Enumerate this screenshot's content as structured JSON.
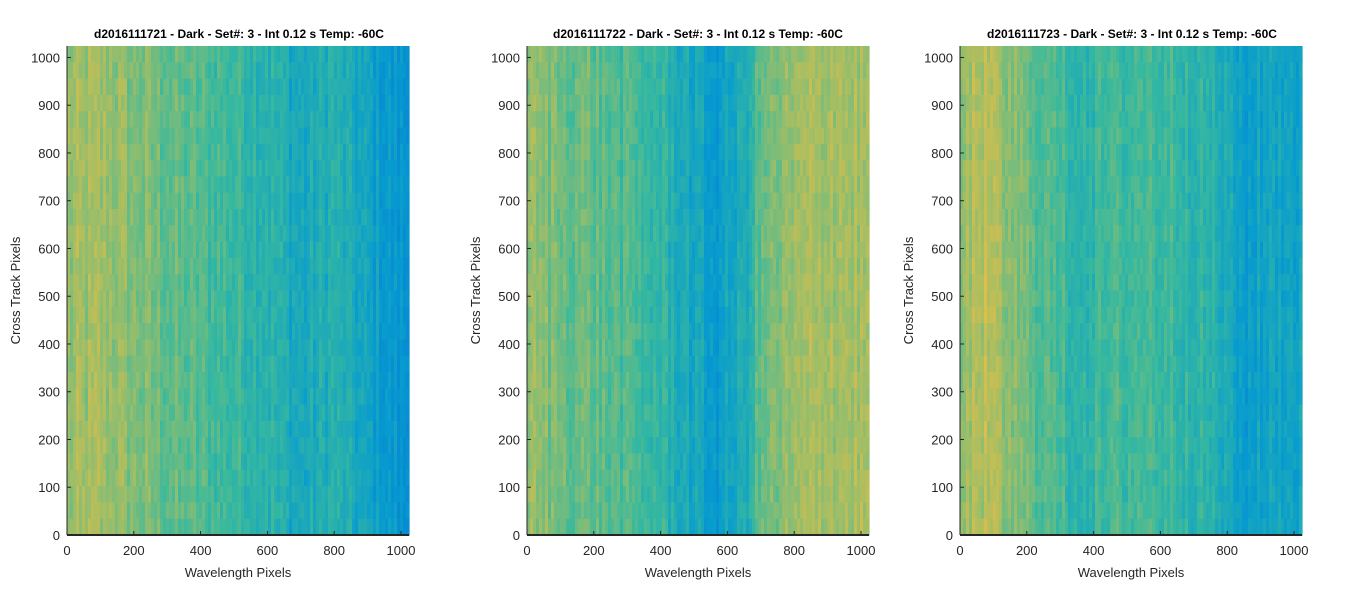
{
  "chart_data": [
    {
      "type": "heatmap",
      "title": "d2016111721 - Dark - Set#: 3 - Int 0.12 s Temp: -60C",
      "xlabel": "Wavelength Pixels",
      "ylabel": "Cross Track Pixels",
      "xlim": [
        0,
        1024
      ],
      "ylim": [
        0,
        1024
      ],
      "xticks": [
        0,
        200,
        400,
        600,
        800,
        1000
      ],
      "yticks": [
        0,
        100,
        200,
        300,
        400,
        500,
        600,
        700,
        800,
        900,
        1000
      ],
      "colormap": "parula",
      "column_profile": [
        {
          "x": 0,
          "level": 0.72
        },
        {
          "x": 100,
          "level": 0.74
        },
        {
          "x": 200,
          "level": 0.7
        },
        {
          "x": 300,
          "level": 0.66
        },
        {
          "x": 400,
          "level": 0.63
        },
        {
          "x": 500,
          "level": 0.6
        },
        {
          "x": 600,
          "level": 0.57
        },
        {
          "x": 700,
          "level": 0.5
        },
        {
          "x": 800,
          "level": 0.55
        },
        {
          "x": 900,
          "level": 0.48
        },
        {
          "x": 1024,
          "level": 0.4
        }
      ]
    },
    {
      "type": "heatmap",
      "title": "d2016111722 - Dark - Set#: 3 - Int 0.12 s Temp: -60C",
      "xlabel": "Wavelength Pixels",
      "ylabel": "Cross Track Pixels",
      "xlim": [
        0,
        1024
      ],
      "ylim": [
        0,
        1024
      ],
      "xticks": [
        0,
        200,
        400,
        600,
        800,
        1000
      ],
      "yticks": [
        0,
        100,
        200,
        300,
        400,
        500,
        600,
        700,
        800,
        900,
        1000
      ],
      "colormap": "parula",
      "column_profile": [
        {
          "x": 0,
          "level": 0.72
        },
        {
          "x": 100,
          "level": 0.68
        },
        {
          "x": 200,
          "level": 0.66
        },
        {
          "x": 300,
          "level": 0.62
        },
        {
          "x": 400,
          "level": 0.58
        },
        {
          "x": 500,
          "level": 0.5
        },
        {
          "x": 560,
          "level": 0.45
        },
        {
          "x": 650,
          "level": 0.52
        },
        {
          "x": 700,
          "level": 0.66
        },
        {
          "x": 800,
          "level": 0.72
        },
        {
          "x": 900,
          "level": 0.76
        },
        {
          "x": 1024,
          "level": 0.74
        }
      ]
    },
    {
      "type": "heatmap",
      "title": "d2016111723 - Dark - Set#: 3 - Int 0.12 s Temp: -60C",
      "xlabel": "Wavelength Pixels",
      "ylabel": "Cross Track Pixels",
      "xlim": [
        0,
        1024
      ],
      "ylim": [
        0,
        1024
      ],
      "xticks": [
        0,
        200,
        400,
        600,
        800,
        1000
      ],
      "yticks": [
        0,
        100,
        200,
        300,
        400,
        500,
        600,
        700,
        800,
        900,
        1000
      ],
      "colormap": "parula",
      "column_profile": [
        {
          "x": 0,
          "level": 0.7
        },
        {
          "x": 60,
          "level": 0.78
        },
        {
          "x": 150,
          "level": 0.7
        },
        {
          "x": 250,
          "level": 0.64
        },
        {
          "x": 350,
          "level": 0.58
        },
        {
          "x": 450,
          "level": 0.6
        },
        {
          "x": 550,
          "level": 0.62
        },
        {
          "x": 650,
          "level": 0.6
        },
        {
          "x": 750,
          "level": 0.56
        },
        {
          "x": 850,
          "level": 0.46
        },
        {
          "x": 950,
          "level": 0.5
        },
        {
          "x": 1024,
          "level": 0.48
        }
      ]
    }
  ]
}
